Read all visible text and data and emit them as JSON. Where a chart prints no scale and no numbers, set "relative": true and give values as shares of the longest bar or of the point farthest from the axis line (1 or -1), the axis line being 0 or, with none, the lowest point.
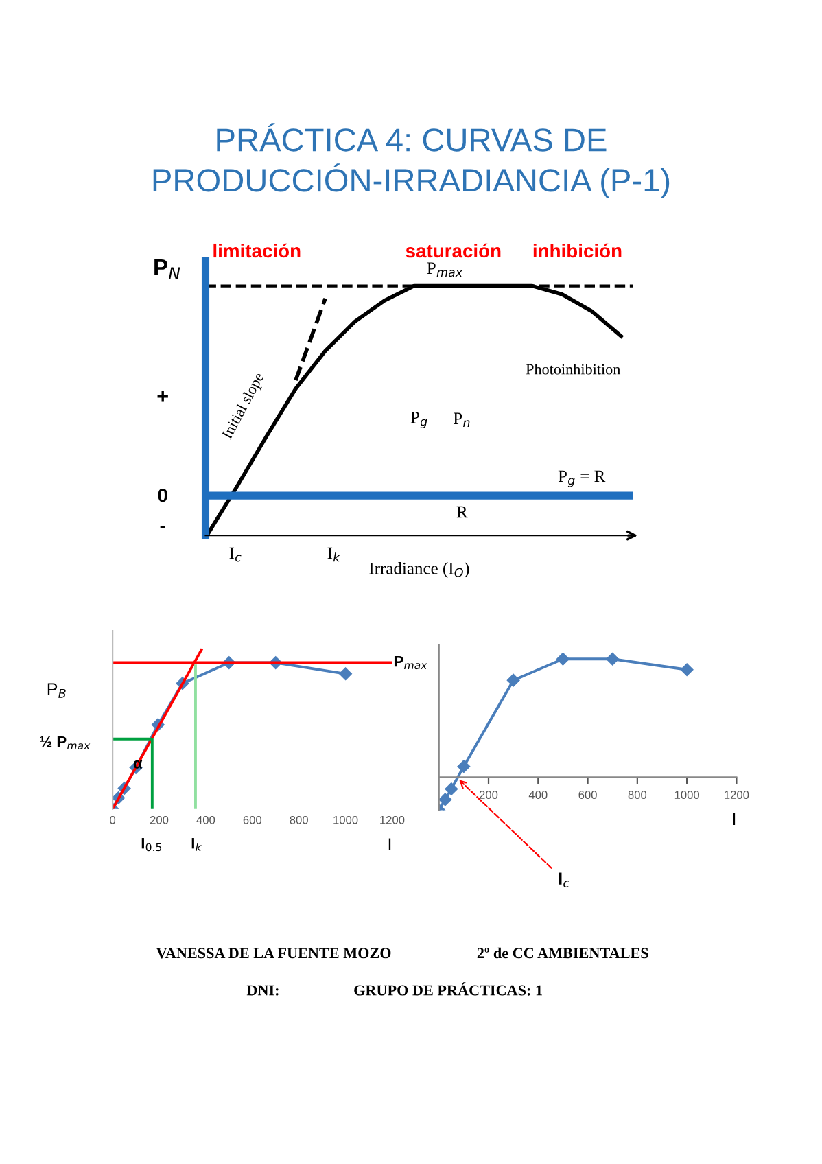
{
  "chart_data": [
    {
      "type": "line",
      "title": "PRÁCTICA 4: CURVAS DE PRODUCCIÓN-IRRADIANCIA (P-1)",
      "relative": true,
      "xlabel": "Irradiance (I$_{O}$)",
      "ylabel": "P$_{N}$",
      "categories": [
        null,
        null,
        null,
        null,
        null,
        null,
        null,
        null,
        null,
        null,
        null,
        null,
        null,
        null,
        null
      ],
      "series": [
        {
          "color": "#000000",
          "values": [
            -0.19,
            0.04,
            0.28,
            0.51,
            0.69,
            0.83,
            0.93,
            1,
            1,
            1,
            1,
            1,
            0.96,
            0.88,
            0.76
          ]
        },
        {
          "color": "#000000",
          "line_style": "dashed",
          "values": [
            null,
            null,
            null,
            0.55,
            0.94,
            null,
            null,
            null,
            null,
            null,
            null,
            null,
            null,
            null,
            null
          ]
        }
      ],
      "ref_lines": [
        {
          "axis": "y",
          "value": 1,
          "label": "P$_{max}$",
          "color": "#000000",
          "line_style": "dashed"
        },
        {
          "axis": "y",
          "value": 0,
          "label": "P$_{g}$ = R",
          "color": "#1f6fbf",
          "line_style": "solid"
        }
      ],
      "annotations": [
        "limitación",
        "saturación",
        "inhibición",
        "Photoinhibition",
        "Initial slope",
        "P$_{g}$",
        "P$_{n}$",
        "R",
        "I$_{c}$",
        "I$_{k}$",
        "+",
        "0",
        "-"
      ],
      "grid": false,
      "legend": false,
      "marker": "none",
      "line_style": "solid"
    },
    {
      "type": "line",
      "relative": true,
      "xlabel": "I",
      "ylabel": "P$_{B}$",
      "x": [
        0,
        25,
        50,
        100,
        195,
        300,
        500,
        700,
        1000
      ],
      "xlim": [
        0,
        1200
      ],
      "xticks": [
        0,
        200,
        400,
        600,
        800,
        1000,
        1200
      ],
      "series": [
        {
          "color": "#4a7ebb",
          "marker": "diamond",
          "values": [
            0,
            0.07,
            0.13,
            0.26,
            0.53,
            0.79,
            0.92,
            0.92,
            0.85
          ]
        },
        {
          "color": "#ff0000",
          "marker": "none",
          "x": [
            0,
            381
          ],
          "values": [
            0,
            1
          ]
        },
        {
          "color": "#00a040",
          "marker": "none",
          "x": [
            0,
            170,
            170
          ],
          "values": [
            0.44,
            0.44,
            0
          ]
        },
        {
          "color": "#90e0a0",
          "marker": "none",
          "x": [
            356,
            356
          ],
          "values": [
            0,
            0.9
          ]
        }
      ],
      "ref_lines": [
        {
          "axis": "y",
          "value": 0.92,
          "label": "P$_{max}$",
          "color": "#ff0000"
        }
      ],
      "annotations": [
        "½ P$_{max}$",
        "α",
        "I$_{0.5}$",
        "I$_{k}$"
      ],
      "grid": false,
      "legend": false,
      "marker": "diamond",
      "line_style": "solid"
    },
    {
      "type": "line",
      "relative": true,
      "xlabel": "I",
      "x": [
        0,
        25,
        50,
        100,
        300,
        500,
        700,
        1000
      ],
      "xlim": [
        0,
        1200
      ],
      "xticks": [
        200,
        400,
        600,
        800,
        1000,
        1200
      ],
      "series": [
        {
          "color": "#4a7ebb",
          "values": [
            -0.28,
            -0.19,
            -0.1,
            0.09,
            0.82,
            1,
            1,
            0.91
          ]
        }
      ],
      "annotations": [
        {
          "text": "I$_{c}$",
          "x": 70,
          "y": 0
        },
        "VANESSA DE LA FUENTE MOZO",
        "2º de CC AMBIENTALES",
        "DNI:",
        "GRUPO DE PRÁCTICAS: 1"
      ],
      "grid": false,
      "legend": false,
      "marker": "diamond",
      "line_style": "solid"
    }
  ]
}
